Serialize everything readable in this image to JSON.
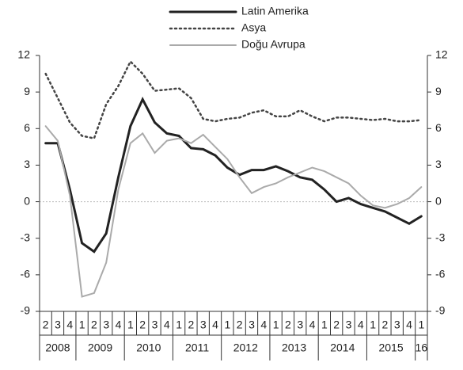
{
  "chart_data": {
    "type": "line",
    "categories": [
      "2",
      "3",
      "4",
      "1",
      "2",
      "3",
      "4",
      "1",
      "2",
      "3",
      "4",
      "1",
      "2",
      "3",
      "4",
      "1",
      "2",
      "3",
      "4",
      "1",
      "2",
      "3",
      "4",
      "1",
      "2",
      "3",
      "4",
      "1",
      "2",
      "3",
      "4",
      "1"
    ],
    "year_labels": [
      "2008",
      "2009",
      "2010",
      "2011",
      "2012",
      "2013",
      "2014",
      "2015",
      "16"
    ],
    "series": [
      {
        "name": "Latin Amerika",
        "color": "#222222",
        "line_style": "solid",
        "values": [
          4.8,
          4.8,
          1.0,
          -3.4,
          -4.1,
          -2.6,
          2.0,
          6.2,
          8.4,
          6.5,
          5.6,
          5.4,
          4.4,
          4.3,
          3.8,
          2.8,
          2.2,
          2.6,
          2.6,
          2.9,
          2.5,
          2.0,
          1.8,
          1.0,
          0.0,
          0.3,
          -0.2,
          -0.5,
          -0.8,
          -1.3,
          -1.8,
          -1.2
        ]
      },
      {
        "name": "Asya",
        "color": "#444444",
        "line_style": "dotted",
        "values": [
          10.5,
          8.5,
          6.5,
          5.4,
          5.2,
          8.0,
          9.5,
          11.5,
          10.5,
          9.1,
          9.2,
          9.3,
          8.5,
          6.8,
          6.6,
          6.8,
          6.9,
          7.3,
          7.5,
          7.0,
          7.0,
          7.5,
          7.0,
          6.6,
          6.9,
          6.9,
          6.8,
          6.7,
          6.8,
          6.6,
          6.6,
          6.7
        ]
      },
      {
        "name": "Doğu Avrupa",
        "color": "#aaaaaa",
        "line_style": "solid",
        "values": [
          6.2,
          5.0,
          0.5,
          -7.8,
          -7.5,
          -5.0,
          1.0,
          4.8,
          5.6,
          4.0,
          5.0,
          5.2,
          4.8,
          5.5,
          4.5,
          3.5,
          2.0,
          0.7,
          1.2,
          1.5,
          2.0,
          2.4,
          2.8,
          2.5,
          2.0,
          1.5,
          0.5,
          -0.3,
          -0.5,
          -0.2,
          0.3,
          1.2
        ]
      }
    ],
    "ylim": [
      -9,
      12
    ],
    "yticks": [
      -9,
      -6,
      -3,
      0,
      3,
      6,
      9,
      12
    ],
    "y2lim": [
      -9,
      12
    ],
    "y2ticks": [
      -9,
      -6,
      -3,
      0,
      3,
      6,
      9,
      12
    ],
    "zero_line": true
  }
}
